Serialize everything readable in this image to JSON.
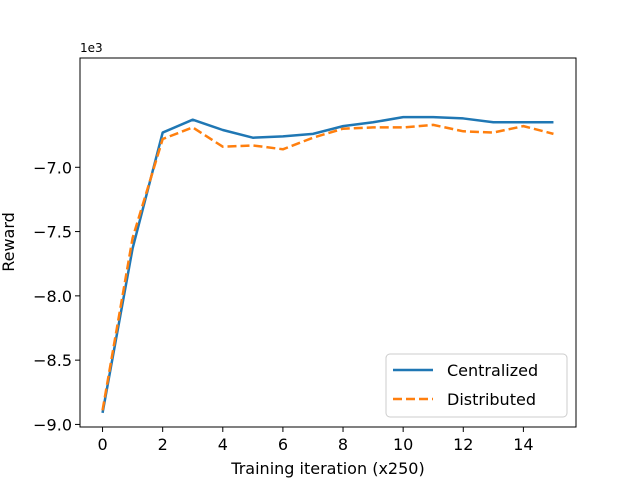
{
  "chart_data": {
    "type": "line",
    "title": "",
    "xlabel": "Training iteration (x250)",
    "ylabel": "Reward",
    "y_offset_label": "1e3",
    "x": [
      0,
      1,
      2,
      3,
      4,
      5,
      6,
      7,
      8,
      9,
      10,
      11,
      12,
      13,
      14,
      15
    ],
    "xlim": [
      -0.75,
      15.75
    ],
    "ylim": [
      -9.02,
      -6.15
    ],
    "x_ticks": [
      0,
      2,
      4,
      6,
      8,
      10,
      12,
      14
    ],
    "x_tick_labels": [
      "0",
      "2",
      "4",
      "6",
      "8",
      "10",
      "12",
      "14"
    ],
    "y_ticks": [
      -9.0,
      -8.5,
      -8.0,
      -7.5,
      -7.0
    ],
    "y_tick_labels": [
      "−9.0",
      "−8.5",
      "−8.0",
      "−7.5",
      "−7.0"
    ],
    "grid": false,
    "legend_position": "lower-right",
    "series": [
      {
        "name": "Centralized",
        "color": "#1f77b4",
        "style": "solid",
        "values": [
          -8.91,
          -7.63,
          -6.73,
          -6.63,
          -6.71,
          -6.77,
          -6.76,
          -6.74,
          -6.68,
          -6.65,
          -6.61,
          -6.61,
          -6.62,
          -6.65,
          -6.65,
          -6.65
        ]
      },
      {
        "name": "Distributed",
        "color": "#ff7f0e",
        "style": "dashed",
        "values": [
          -8.89,
          -7.55,
          -6.78,
          -6.69,
          -6.84,
          -6.83,
          -6.86,
          -6.77,
          -6.7,
          -6.69,
          -6.69,
          -6.67,
          -6.72,
          -6.73,
          -6.68,
          -6.74
        ]
      }
    ]
  }
}
